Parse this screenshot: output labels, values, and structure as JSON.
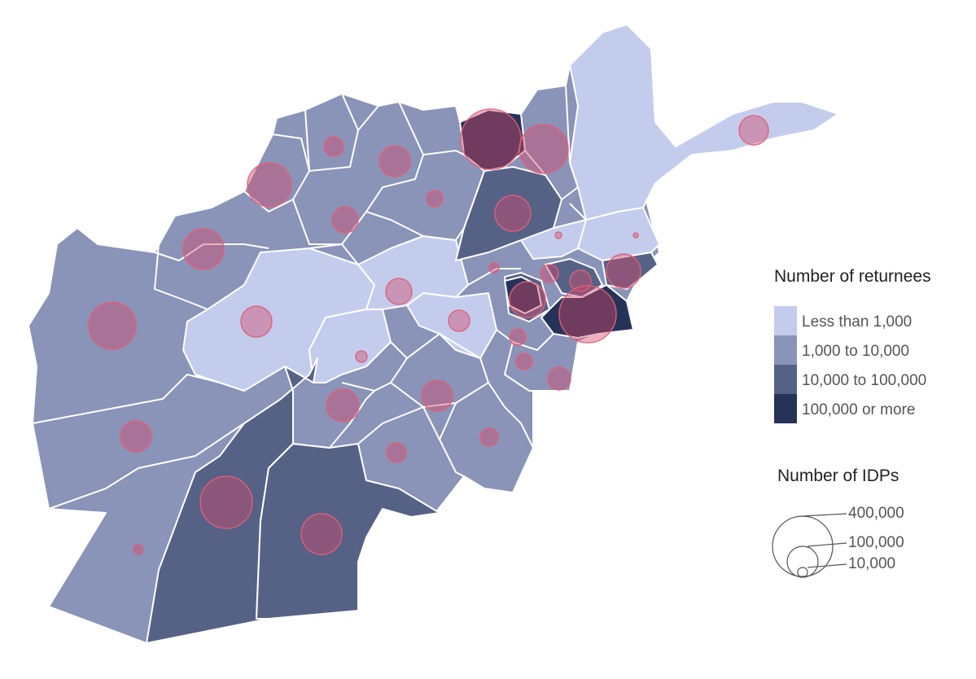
{
  "legend": {
    "returnees": {
      "title": "Number of returnees",
      "classes": [
        {
          "label": "Less than 1,000",
          "color": "#c3ccec"
        },
        {
          "label": "1,000 to 10,000",
          "color": "#8a93b8"
        },
        {
          "label": "10,000 to 100,000",
          "color": "#566186"
        },
        {
          "label": "100,000 or more",
          "color": "#263358"
        }
      ]
    },
    "idps": {
      "title": "Number of IDPs",
      "sizes": [
        {
          "label": "400,000",
          "value": 400000
        },
        {
          "label": "100,000",
          "value": 100000
        },
        {
          "label": "10,000",
          "value": 10000
        }
      ]
    }
  },
  "colors": {
    "border": "#ffffff",
    "bubble_fill": "#d5486a",
    "bubble_stroke": "#e0607a"
  }
}
